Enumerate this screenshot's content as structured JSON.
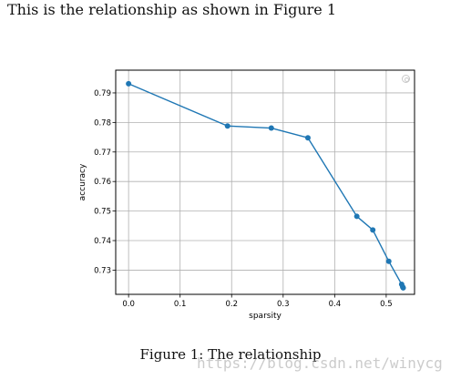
{
  "intro_text": "This is the relationship as shown in Figure 1",
  "caption": "Figure 1: The relationship",
  "watermark": "https://blog.csdn.net/winycg",
  "colors": {
    "line": "#1f77b4",
    "grid": "#b0b0b0",
    "axis": "#000000"
  },
  "chart_data": {
    "type": "line",
    "xlabel": "sparsity",
    "ylabel": "accuracy",
    "xlim": [
      -0.025,
      0.555
    ],
    "ylim": [
      0.7218,
      0.7977
    ],
    "grid": true,
    "marker": "circle",
    "x_ticks": [
      0.0,
      0.1,
      0.2,
      0.3,
      0.4,
      0.5
    ],
    "x_tick_labels": [
      "0.0",
      "0.1",
      "0.2",
      "0.3",
      "0.4",
      "0.5"
    ],
    "y_ticks": [
      0.73,
      0.74,
      0.75,
      0.76,
      0.77,
      0.78,
      0.79
    ],
    "y_tick_labels": [
      "0.73",
      "0.74",
      "0.75",
      "0.76",
      "0.77",
      "0.78",
      "0.79"
    ],
    "series": [
      {
        "x": [
          0.0,
          0.192,
          0.277,
          0.348,
          0.443,
          0.474,
          0.505,
          0.53,
          0.532,
          0.533
        ],
        "y": [
          0.7931,
          0.7788,
          0.7781,
          0.7748,
          0.7482,
          0.7436,
          0.733,
          0.7252,
          0.7243,
          0.724
        ]
      }
    ]
  }
}
